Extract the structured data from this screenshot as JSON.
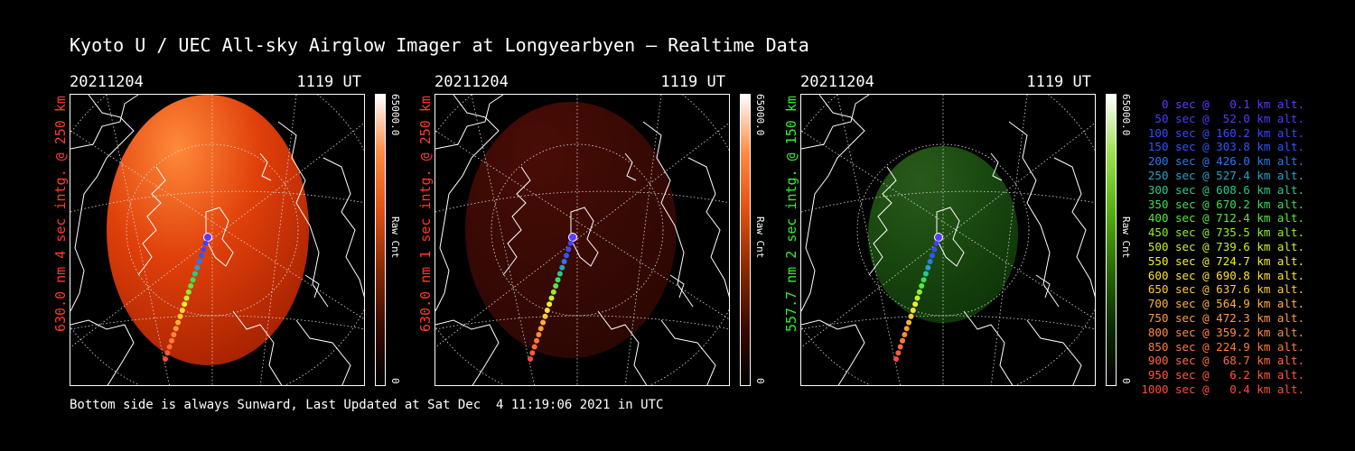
{
  "header": {
    "title": "Kyoto U / UEC All-sky Airglow Imager at Longyearbyen — Realtime Data"
  },
  "panels": [
    {
      "date": "20211204",
      "time": "1119 UT",
      "vlabel": "630.0 nm 4 sec intg. @ 250 km",
      "label_color": "#ff3a2a",
      "color_max": "#ff6a1a",
      "cbar_max": "65000.0",
      "cbar_unit": "Raw Cnt",
      "cbar_min": "0"
    },
    {
      "date": "20211204",
      "time": "1119 UT",
      "vlabel": "630.0 nm 1 sec intg. @ 250 km",
      "label_color": "#ff3a2a",
      "color_max": "#ff6a1a",
      "cbar_max": "65000.0",
      "cbar_unit": "Raw Cnt",
      "cbar_min": "0"
    },
    {
      "date": "20211204",
      "time": "1119 UT",
      "vlabel": "557.7 nm 2 sec intg. @ 150 km",
      "label_color": "#33ee33",
      "color_max": "#55cc11",
      "cbar_max": "65000.0",
      "cbar_unit": "Raw Cnt",
      "cbar_min": "0"
    }
  ],
  "legend": [
    {
      "text": "0 sec @   0.1 km alt.",
      "color": "#5a3cff"
    },
    {
      "text": "50 sec @  52.0 km alt.",
      "color": "#4a3cff"
    },
    {
      "text": "100 sec @ 160.2 km alt.",
      "color": "#3a48ff"
    },
    {
      "text": "150 sec @ 303.8 km alt.",
      "color": "#2a58ff"
    },
    {
      "text": "200 sec @ 426.0 km alt.",
      "color": "#2a78ee"
    },
    {
      "text": "250 sec @ 527.4 km alt.",
      "color": "#2aa0c8"
    },
    {
      "text": "300 sec @ 608.6 km alt.",
      "color": "#2ac890"
    },
    {
      "text": "350 sec @ 670.2 km alt.",
      "color": "#3ade5a"
    },
    {
      "text": "400 sec @ 712.4 km alt.",
      "color": "#5ae83a"
    },
    {
      "text": "450 sec @ 735.5 km alt.",
      "color": "#8ef02a"
    },
    {
      "text": "500 sec @ 739.6 km alt.",
      "color": "#c8f02a"
    },
    {
      "text": "550 sec @ 724.7 km alt.",
      "color": "#f0f02a"
    },
    {
      "text": "600 sec @ 690.8 km alt.",
      "color": "#ffe03a"
    },
    {
      "text": "650 sec @ 637.6 km alt.",
      "color": "#ffc83a"
    },
    {
      "text": "700 sec @ 564.9 km alt.",
      "color": "#ffb040"
    },
    {
      "text": "750 sec @ 472.3 km alt.",
      "color": "#ff9a40"
    },
    {
      "text": "800 sec @ 359.2 km alt.",
      "color": "#ff8a40"
    },
    {
      "text": "850 sec @ 224.9 km alt.",
      "color": "#ff7a3a"
    },
    {
      "text": "900 sec @  68.7 km alt.",
      "color": "#ff6a3a"
    },
    {
      "text": "950 sec @   6.2 km alt.",
      "color": "#ff5a3a"
    },
    {
      "text": "1000 sec @   0.4 km alt.",
      "color": "#ff4a3a"
    }
  ],
  "footer": {
    "text": "Bottom side is always Sunward, Last Updated at Sat Dec  4 11:19:06 2021 in UTC"
  }
}
